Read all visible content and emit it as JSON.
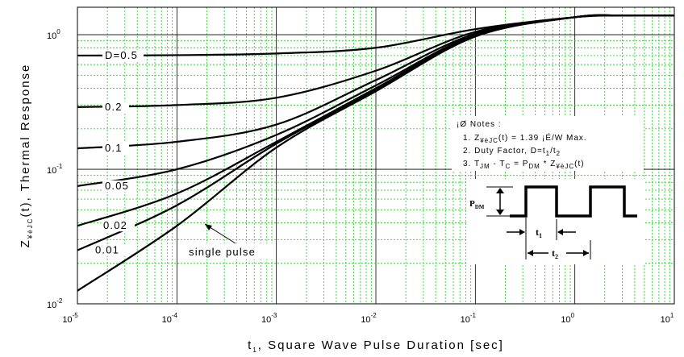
{
  "chart_data": {
    "type": "line",
    "x_scale": "log",
    "y_scale": "log",
    "xlim": [
      1e-05,
      10
    ],
    "ylim": [
      0.01,
      1.6
    ],
    "grid": true,
    "x_ticks": [
      {
        "base": "10",
        "exp": "-5"
      },
      {
        "base": "10",
        "exp": "-4"
      },
      {
        "base": "10",
        "exp": "-3"
      },
      {
        "base": "10",
        "exp": "-2"
      },
      {
        "base": "10",
        "exp": "-1"
      },
      {
        "base": "10",
        "exp": "0"
      },
      {
        "base": "10",
        "exp": "1"
      }
    ],
    "y_ticks": [
      {
        "base": "10",
        "exp": "-2"
      },
      {
        "base": "10",
        "exp": "-1"
      },
      {
        "base": "10",
        "exp": "0"
      }
    ],
    "xlabel": {
      "main": "t",
      "sub": "1",
      "rest": ", Square Wave Pulse Duration [sec]"
    },
    "ylabel": {
      "main": "Z",
      "sub": "¥èJC",
      "rest": "(t), Thermal Response"
    },
    "series": [
      {
        "name": "D=0.5",
        "label": "D=0.5",
        "points": [
          [
            1e-05,
            0.7
          ],
          [
            0.0001,
            0.705
          ],
          [
            0.001,
            0.725
          ],
          [
            0.01,
            0.8
          ],
          [
            0.1,
            1.1
          ],
          [
            1,
            1.35
          ],
          [
            3,
            1.39
          ],
          [
            10,
            1.39
          ]
        ]
      },
      {
        "name": "0.2",
        "label": "0.2",
        "points": [
          [
            1e-05,
            0.29
          ],
          [
            0.0001,
            0.3
          ],
          [
            0.001,
            0.34
          ],
          [
            0.01,
            0.54
          ],
          [
            0.1,
            1.05
          ],
          [
            1,
            1.35
          ],
          [
            3,
            1.39
          ],
          [
            10,
            1.39
          ]
        ]
      },
      {
        "name": "0.1",
        "label": "0.1",
        "points": [
          [
            1e-05,
            0.143
          ],
          [
            0.0001,
            0.16
          ],
          [
            0.001,
            0.215
          ],
          [
            0.01,
            0.46
          ],
          [
            0.1,
            1.02
          ],
          [
            1,
            1.35
          ],
          [
            3,
            1.39
          ],
          [
            10,
            1.39
          ]
        ]
      },
      {
        "name": "0.05",
        "label": "0.05",
        "points": [
          [
            1e-05,
            0.075
          ],
          [
            0.0001,
            0.1
          ],
          [
            0.001,
            0.18
          ],
          [
            0.01,
            0.42
          ],
          [
            0.1,
            1.0
          ],
          [
            1,
            1.35
          ],
          [
            3,
            1.39
          ],
          [
            10,
            1.39
          ]
        ]
      },
      {
        "name": "0.02",
        "label": "0.02",
        "points": [
          [
            1e-05,
            0.038
          ],
          [
            0.0001,
            0.066
          ],
          [
            0.001,
            0.16
          ],
          [
            0.01,
            0.4
          ],
          [
            0.1,
            0.99
          ],
          [
            1,
            1.35
          ],
          [
            3,
            1.39
          ],
          [
            10,
            1.39
          ]
        ]
      },
      {
        "name": "0.01",
        "label": "0.01",
        "points": [
          [
            1e-05,
            0.025
          ],
          [
            0.0001,
            0.054
          ],
          [
            0.001,
            0.155
          ],
          [
            0.01,
            0.39
          ],
          [
            0.1,
            0.98
          ],
          [
            1,
            1.35
          ],
          [
            3,
            1.39
          ],
          [
            10,
            1.39
          ]
        ]
      },
      {
        "name": "single pulse",
        "label": "single pulse",
        "points": [
          [
            1e-05,
            0.0125
          ],
          [
            0.0001,
            0.038
          ],
          [
            0.001,
            0.145
          ],
          [
            0.01,
            0.38
          ],
          [
            0.1,
            0.97
          ],
          [
            1,
            1.35
          ],
          [
            3,
            1.39
          ],
          [
            10,
            1.39
          ]
        ]
      }
    ],
    "notes": {
      "header": "¡Ø Notes :",
      "line1": {
        "pre": "1. Z",
        "sub": "¥èJC",
        "post": "(t) = 1.39 ¡É/W Max."
      },
      "line2": {
        "pre": "2. Duty Factor, D=t",
        "sub1": "1",
        "mid": "/t",
        "sub2": "2"
      },
      "line3": {
        "pre": "3. T",
        "sub1": "JM",
        "mid1": " - T",
        "sub2": "C",
        "mid2": " = P",
        "sub3": "DM",
        "mid3": " * Z",
        "sub4": "¥èJC",
        "post": "(t)"
      }
    },
    "inset": {
      "pdm": {
        "main": "P",
        "sub": "DM"
      },
      "t1": {
        "main": "t",
        "sub": "1"
      },
      "t2": {
        "main": "t",
        "sub": "2"
      }
    }
  }
}
